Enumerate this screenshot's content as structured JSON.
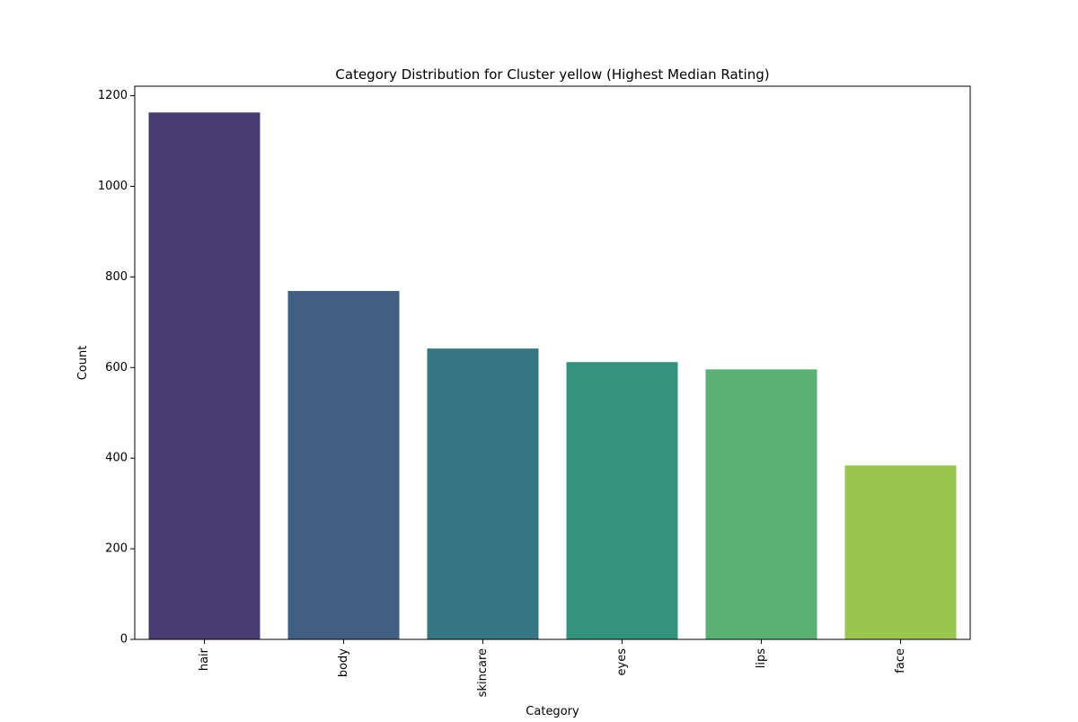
{
  "chart_data": {
    "type": "bar",
    "title": "Category Distribution for Cluster yellow (Highest Median Rating)",
    "xlabel": "Category",
    "ylabel": "Count",
    "categories": [
      "hair",
      "body",
      "skincare",
      "eyes",
      "lips",
      "face"
    ],
    "values": [
      1163,
      769,
      642,
      612,
      596,
      384
    ],
    "colors": [
      "#483d73",
      "#415f82",
      "#357782",
      "#33937f",
      "#59b173",
      "#9bc64e"
    ],
    "ylim": [
      0,
      1221
    ],
    "yticks": [
      0,
      200,
      400,
      600,
      800,
      1000,
      1200
    ],
    "grid": false,
    "legend": "none"
  }
}
